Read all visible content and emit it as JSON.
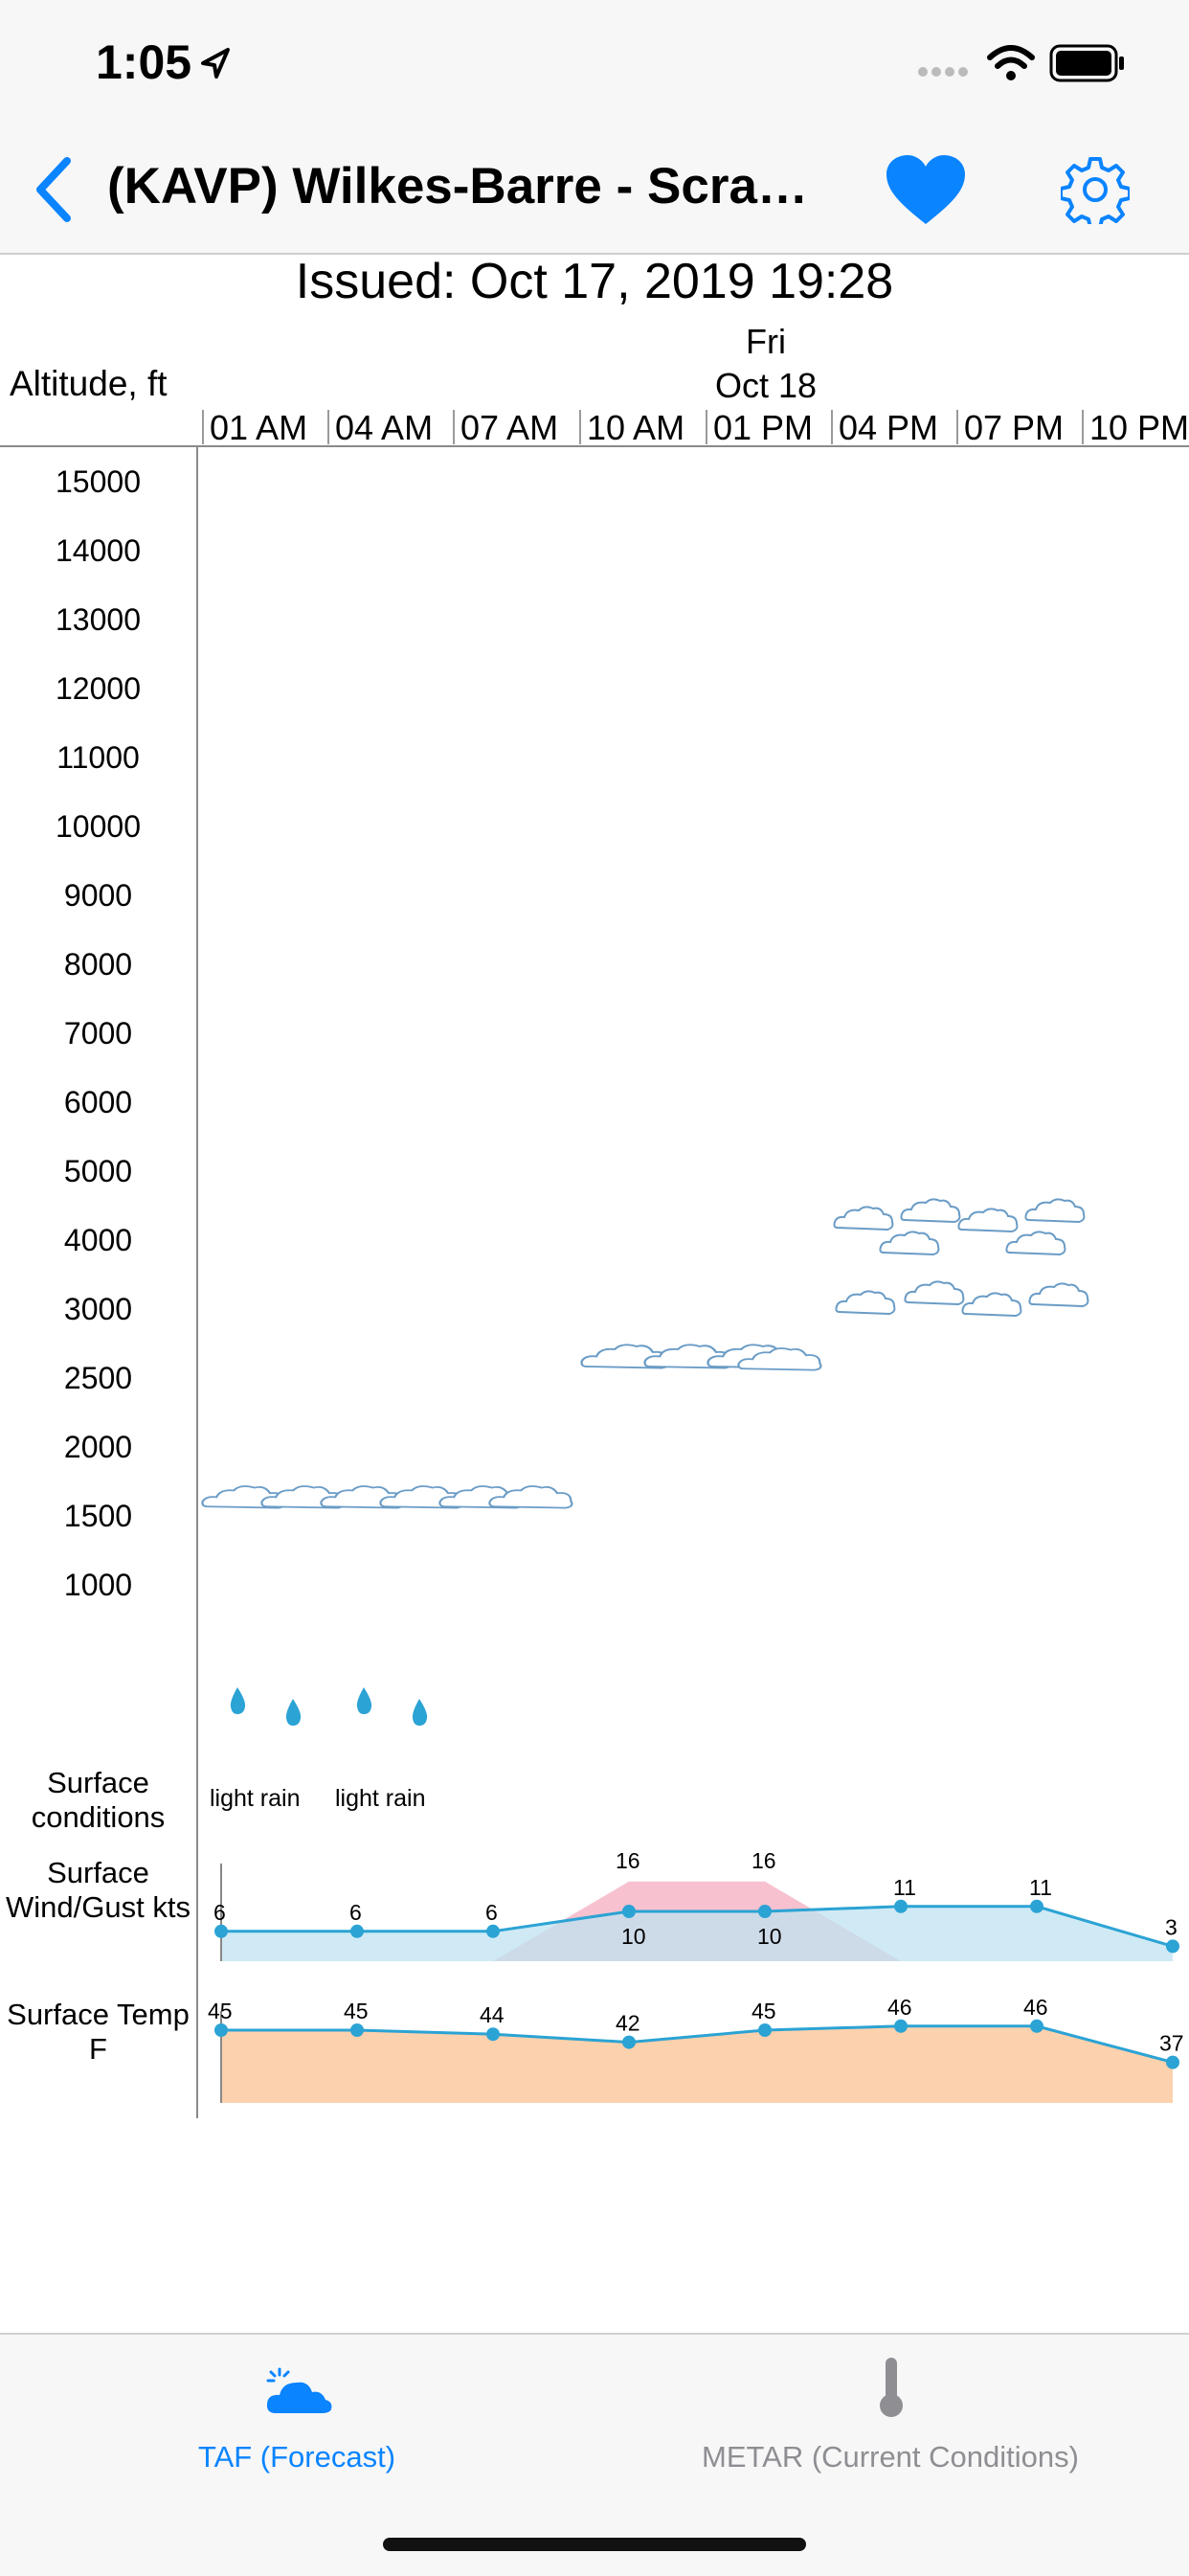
{
  "status_bar": {
    "time": "1:05"
  },
  "nav": {
    "back_icon": "chevron-left-icon",
    "title": "(KAVP) Wilkes-Barre - Scranton",
    "favorite_icon": "heart-icon",
    "settings_icon": "gear-icon"
  },
  "issued": "Issued: Oct 17, 2019 19:28",
  "date_header": {
    "day": "Fri",
    "date": "Oct 18"
  },
  "altitude_axis_label": "Altitude, ft",
  "time_ticks": [
    "01 AM",
    "04 AM",
    "07 AM",
    "10 AM",
    "01 PM",
    "04 PM",
    "07 PM",
    "10 PM"
  ],
  "altitude_ticks": [
    "15000",
    "14000",
    "13000",
    "12000",
    "11000",
    "10000",
    "9000",
    "8000",
    "7000",
    "6000",
    "5000",
    "4000",
    "3000",
    "2500",
    "2000",
    "1500",
    "1000"
  ],
  "rows": {
    "surface_conditions": "Surface conditions",
    "surface_wind": "Surface Wind/Gust kts",
    "surface_temp": "Surface Temp F"
  },
  "surface_conditions": [
    {
      "time": "01 AM",
      "text": "light rain"
    },
    {
      "time": "04 AM",
      "text": "light rain"
    }
  ],
  "chart_data": [
    {
      "type": "area",
      "title": "Surface Wind/Gust kts",
      "x": [
        "01 AM",
        "04 AM",
        "07 AM",
        "10 AM",
        "01 PM",
        "04 PM",
        "07 PM",
        "10 PM"
      ],
      "series": [
        {
          "values": [
            6,
            6,
            6,
            10,
            10,
            11,
            11,
            3
          ]
        },
        {
          "values": [
            null,
            null,
            0,
            16,
            16,
            0,
            null,
            null
          ]
        }
      ],
      "colors": {
        "wind": "#2ba3d4",
        "wind_fill": "#bfe3f1",
        "gust_fill": "#f6b6c7"
      }
    },
    {
      "type": "area",
      "title": "Surface Temp F",
      "x": [
        "01 AM",
        "04 AM",
        "07 AM",
        "10 AM",
        "01 PM",
        "04 PM",
        "07 PM",
        "10 PM"
      ],
      "series": [
        {
          "values": [
            45,
            45,
            44,
            42,
            45,
            46,
            46,
            37
          ]
        }
      ],
      "colors": {
        "line": "#2ba3d4",
        "fill": "#fcd1ad"
      }
    }
  ],
  "clouds": [
    {
      "layer": "FEW",
      "altitude": 1500,
      "from": "01 AM",
      "to": "10 AM"
    },
    {
      "layer": "SCT",
      "altitude": 2500,
      "from": "10 AM",
      "to": "04 PM"
    },
    {
      "layer": "BKN",
      "altitude": 4000,
      "from": "04 PM",
      "to": "10 PM"
    },
    {
      "layer": "BKN",
      "altitude": 3000,
      "from": "04 PM",
      "to": "10 PM"
    }
  ],
  "tabs": [
    {
      "label": "TAF (Forecast)",
      "icon": "cloud-sun-icon",
      "active": true
    },
    {
      "label": "METAR (Current Conditions)",
      "icon": "thermometer-icon",
      "active": false
    }
  ],
  "colors": {
    "accent": "#0a84ff",
    "inactive": "#8e8e93"
  }
}
